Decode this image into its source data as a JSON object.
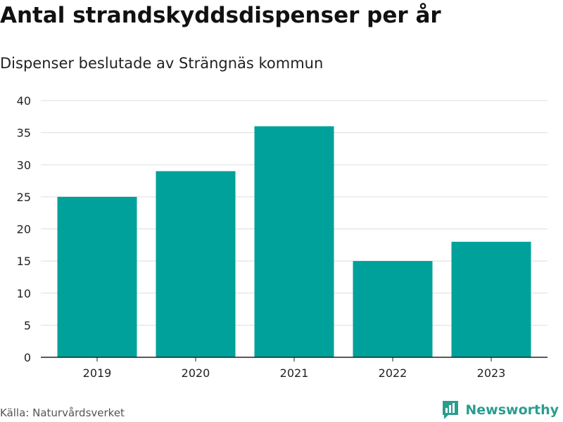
{
  "colors": {
    "bar": "#00a19a",
    "grid": "#dddddd",
    "axis": "#222222",
    "brand": "#2a9d8f"
  },
  "source_label": "Källa: Naturvårdsverket",
  "brand_name": "Newsworthy",
  "chart_data": {
    "type": "bar",
    "title": "Antal strandskyddsdispenser per år",
    "subtitle": "Dispenser beslutade av Strängnäs kommun",
    "categories": [
      "2019",
      "2020",
      "2021",
      "2022",
      "2023"
    ],
    "values": [
      25,
      29,
      36,
      15,
      18
    ],
    "xlabel": "",
    "ylabel": "",
    "ylim": [
      0,
      40
    ],
    "yticks": [
      0,
      5,
      10,
      15,
      20,
      25,
      30,
      35,
      40
    ],
    "grid": true
  }
}
